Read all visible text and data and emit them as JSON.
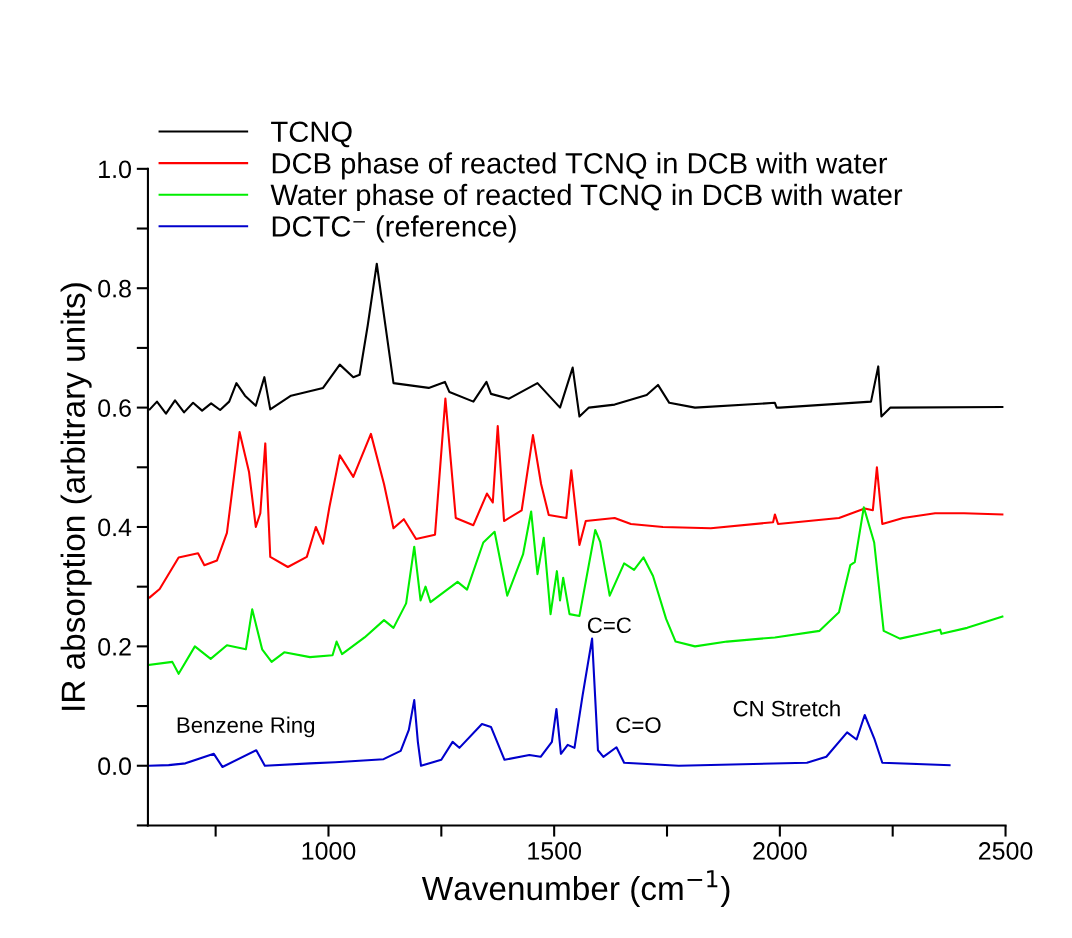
{
  "chart_data": {
    "type": "line",
    "xlabel": "Wavenumber (cm$^{−1}$)",
    "ylabel": "IR absorption (arbitrary units)",
    "xlim": [
      600,
      2500
    ],
    "ylim": [
      -0.1,
      1.0
    ],
    "xticks": [
      {
        "value": 750,
        "label": null
      },
      1000,
      {
        "value": 1250,
        "label": null
      },
      1500,
      {
        "value": 1750,
        "label": null
      },
      2000,
      {
        "value": 2250,
        "label": null
      },
      2500
    ],
    "yticks": [
      {
        "value": -0.1,
        "label": null
      },
      {
        "value": 0,
        "label": "0.0"
      },
      {
        "value": 0.1,
        "label": null
      },
      0.2,
      {
        "value": 0.3,
        "label": null
      },
      0.4,
      {
        "value": 0.5,
        "label": null
      },
      0.6,
      {
        "value": 0.7,
        "label": null
      },
      0.8,
      {
        "value": 0.9,
        "label": null
      },
      {
        "value": 1.0,
        "label": "1.0"
      }
    ],
    "grid": false,
    "legend": "top left",
    "line_style": "solid",
    "marker": "none",
    "series": [
      {
        "name": "TCNQ",
        "color": "#000000",
        "x": [
          604,
          620,
          640,
          660,
          680,
          700,
          720,
          740,
          760,
          780,
          796,
          815,
          839,
          858,
          871,
          917,
          988,
          1025,
          1055,
          1069,
          1087,
          1107,
          1126,
          1144,
          1222,
          1258,
          1268,
          1321,
          1350,
          1360,
          1400,
          1463,
          1513,
          1541,
          1556,
          1577,
          1634,
          1705,
          1730,
          1755,
          1812,
          1989,
          1993,
          2000,
          2202,
          2218,
          2225,
          2245,
          2493
        ],
        "values": [
          0.597,
          0.61,
          0.59,
          0.612,
          0.592,
          0.608,
          0.595,
          0.607,
          0.596,
          0.61,
          0.641,
          0.62,
          0.603,
          0.651,
          0.597,
          0.62,
          0.633,
          0.672,
          0.651,
          0.655,
          0.738,
          0.841,
          0.738,
          0.641,
          0.633,
          0.643,
          0.626,
          0.61,
          0.643,
          0.623,
          0.615,
          0.641,
          0.6,
          0.667,
          0.585,
          0.6,
          0.605,
          0.621,
          0.638,
          0.608,
          0.6,
          0.608,
          0.6,
          0.6,
          0.61,
          0.669,
          0.585,
          0.6,
          0.601
        ]
      },
      {
        "name": "DCB phase of reacted TCNQ in DCB with water",
        "color": "#ff0000",
        "x": [
          604,
          626,
          668,
          711,
          725,
          753,
          775,
          803,
          824,
          839,
          849,
          860,
          871,
          910,
          952,
          972,
          988,
          1002,
          1025,
          1055,
          1094,
          1123,
          1144,
          1167,
          1194,
          1236,
          1259,
          1282,
          1321,
          1351,
          1364,
          1375,
          1389,
          1428,
          1453,
          1471,
          1488,
          1527,
          1538,
          1556,
          1570,
          1634,
          1670,
          1741,
          1847,
          1985,
          1989,
          1996,
          2131,
          2188,
          2206,
          2215,
          2227,
          2273,
          2344,
          2408,
          2493
        ],
        "values": [
          0.282,
          0.296,
          0.349,
          0.356,
          0.336,
          0.344,
          0.39,
          0.559,
          0.492,
          0.4,
          0.423,
          0.54,
          0.35,
          0.333,
          0.35,
          0.4,
          0.372,
          0.433,
          0.52,
          0.484,
          0.556,
          0.472,
          0.398,
          0.413,
          0.38,
          0.387,
          0.615,
          0.415,
          0.403,
          0.456,
          0.441,
          0.569,
          0.41,
          0.428,
          0.554,
          0.472,
          0.42,
          0.415,
          0.495,
          0.37,
          0.41,
          0.415,
          0.405,
          0.4,
          0.398,
          0.408,
          0.421,
          0.405,
          0.415,
          0.431,
          0.428,
          0.5,
          0.405,
          0.415,
          0.423,
          0.423,
          0.421
        ]
      },
      {
        "name": "Water phase of reacted TCNQ in DCB with water",
        "color": "#00ee00",
        "x": [
          604,
          654,
          668,
          704,
          739,
          775,
          817,
          831,
          853,
          874,
          902,
          959,
          1009,
          1018,
          1030,
          1080,
          1123,
          1144,
          1172,
          1190,
          1204,
          1215,
          1226,
          1286,
          1307,
          1343,
          1368,
          1396,
          1431,
          1449,
          1463,
          1477,
          1492,
          1506,
          1513,
          1520,
          1534,
          1556,
          1591,
          1602,
          1623,
          1655,
          1677,
          1698,
          1719,
          1748,
          1769,
          1812,
          1883,
          1989,
          2088,
          2131,
          2156,
          2166,
          2186,
          2209,
          2230,
          2266,
          2316,
          2355,
          2358,
          2415,
          2493
        ],
        "values": [
          0.169,
          0.174,
          0.154,
          0.2,
          0.179,
          0.202,
          0.195,
          0.262,
          0.195,
          0.174,
          0.19,
          0.182,
          0.185,
          0.208,
          0.187,
          0.215,
          0.244,
          0.231,
          0.272,
          0.367,
          0.277,
          0.3,
          0.274,
          0.308,
          0.295,
          0.374,
          0.392,
          0.285,
          0.354,
          0.426,
          0.321,
          0.382,
          0.254,
          0.326,
          0.277,
          0.315,
          0.254,
          0.251,
          0.395,
          0.375,
          0.285,
          0.339,
          0.328,
          0.349,
          0.318,
          0.246,
          0.208,
          0.2,
          0.208,
          0.215,
          0.226,
          0.257,
          0.336,
          0.341,
          0.433,
          0.374,
          0.226,
          0.213,
          0.221,
          0.228,
          0.221,
          0.231,
          0.25
        ]
      },
      {
        "name": "DCTC⁻ (reference)",
        "color": "#0000cc",
        "x": [
          602,
          646,
          683,
          746,
          765,
          840,
          859,
          959,
          1015,
          1122,
          1160,
          1178,
          1190,
          1198,
          1205,
          1250,
          1275,
          1290,
          1340,
          1360,
          1390,
          1445,
          1470,
          1495,
          1505,
          1515,
          1530,
          1545,
          1563,
          1584,
          1597,
          1609,
          1638,
          1655,
          1776,
          2060,
          2103,
          2149,
          2170,
          2188,
          2209,
          2227,
          2376
        ],
        "values": [
          0.0,
          0.001,
          0.004,
          0.02,
          -0.002,
          0.026,
          0.0,
          0.004,
          0.006,
          0.011,
          0.025,
          0.06,
          0.11,
          0.04,
          0.0,
          0.01,
          0.04,
          0.03,
          0.07,
          0.065,
          0.01,
          0.018,
          0.015,
          0.04,
          0.095,
          0.02,
          0.035,
          0.03,
          0.118,
          0.213,
          0.026,
          0.015,
          0.031,
          0.005,
          0.0,
          0.005,
          0.015,
          0.056,
          0.044,
          0.085,
          0.046,
          0.005,
          0.001
        ]
      }
    ],
    "annotations": [
      "Benzene Ring",
      "C=C",
      "C=O",
      "CN Stretch"
    ]
  }
}
